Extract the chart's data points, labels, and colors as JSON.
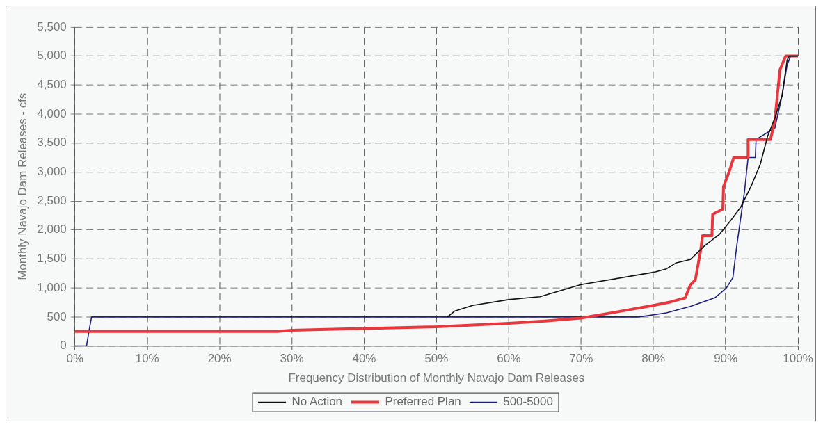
{
  "chart_data": {
    "type": "line",
    "xlabel": "Frequency Distribution of Monthly Navajo Dam Releases",
    "ylabel": "Monthly Navajo Dam Releases - cfs",
    "xlim": [
      0,
      100
    ],
    "ylim": [
      0,
      5500
    ],
    "xticks": [
      {
        "value": 0,
        "label": "0%"
      },
      {
        "value": 10,
        "label": "10%"
      },
      {
        "value": 20,
        "label": "20%"
      },
      {
        "value": 30,
        "label": "30%"
      },
      {
        "value": 40,
        "label": "40%"
      },
      {
        "value": 50,
        "label": "50%"
      },
      {
        "value": 60,
        "label": "60%"
      },
      {
        "value": 70,
        "label": "70%"
      },
      {
        "value": 80,
        "label": "80%"
      },
      {
        "value": 90,
        "label": "90%"
      },
      {
        "value": 100,
        "label": "100%"
      }
    ],
    "yticks": [
      0,
      500,
      {
        "value": 1000,
        "label": "1,000"
      },
      {
        "value": 1500,
        "label": "1,500"
      },
      {
        "value": 2000,
        "label": "2,000"
      },
      {
        "value": 2500,
        "label": "2,500"
      },
      {
        "value": 3000,
        "label": "3,000"
      },
      {
        "value": 3500,
        "label": "3,500"
      },
      {
        "value": 4000,
        "label": "4,000"
      },
      {
        "value": 4500,
        "label": "4,500"
      },
      {
        "value": 5000,
        "label": "5,000"
      },
      {
        "value": 5500,
        "label": "5,500"
      }
    ],
    "grid": true,
    "legend": "bottom",
    "line_style": "solid",
    "marker": "none",
    "series": [
      {
        "name": "No Action",
        "color": "#111111",
        "x": [
          51.5,
          52.5,
          55,
          60,
          64.3,
          70,
          80,
          81.8,
          83.1,
          85.1,
          87.1,
          89.1,
          90.8,
          92.1,
          93.5,
          94.8,
          95.8,
          96.8,
          97.8,
          98.5,
          98.8,
          100
        ],
        "values": [
          500,
          600,
          700,
          800,
          850,
          1060,
          1270,
          1330,
          1430,
          1490,
          1730,
          1920,
          2180,
          2400,
          2750,
          3140,
          3620,
          3930,
          4320,
          4930,
          5000,
          5000
        ]
      },
      {
        "name": "Preferred Plan",
        "color": "#e8383d",
        "x": [
          0,
          28,
          30,
          40,
          50,
          60,
          65,
          70,
          75.1,
          80,
          82.4,
          84.4,
          85.1,
          85.8,
          86.5,
          86.8,
          88.1,
          88.2,
          89.6,
          89.7,
          90.5,
          91.1,
          93.1,
          93.1,
          96.2,
          96.8,
          97.5,
          98.3,
          100
        ],
        "values": [
          250,
          250,
          270,
          300,
          330,
          390,
          430,
          480,
          590,
          700,
          760,
          830,
          1050,
          1140,
          1620,
          1900,
          1900,
          2270,
          2360,
          2750,
          3010,
          3250,
          3250,
          3560,
          3560,
          3890,
          4760,
          5000,
          5000
        ]
      },
      {
        "name": "500-5000",
        "color": "#1f2080",
        "x": [
          0,
          1.6,
          2,
          2.3,
          70,
          78,
          81.8,
          85.1,
          88.5,
          90.1,
          91,
          91.5,
          92.1,
          92.6,
          93.1,
          94.1,
          94.2,
          96.8,
          97.8,
          98.5,
          99,
          100
        ],
        "values": [
          0,
          0,
          300,
          500,
          500,
          500,
          570,
          680,
          830,
          1000,
          1180,
          1700,
          2230,
          2660,
          3250,
          3250,
          3560,
          3760,
          4320,
          4850,
          5000,
          5000
        ]
      }
    ]
  }
}
